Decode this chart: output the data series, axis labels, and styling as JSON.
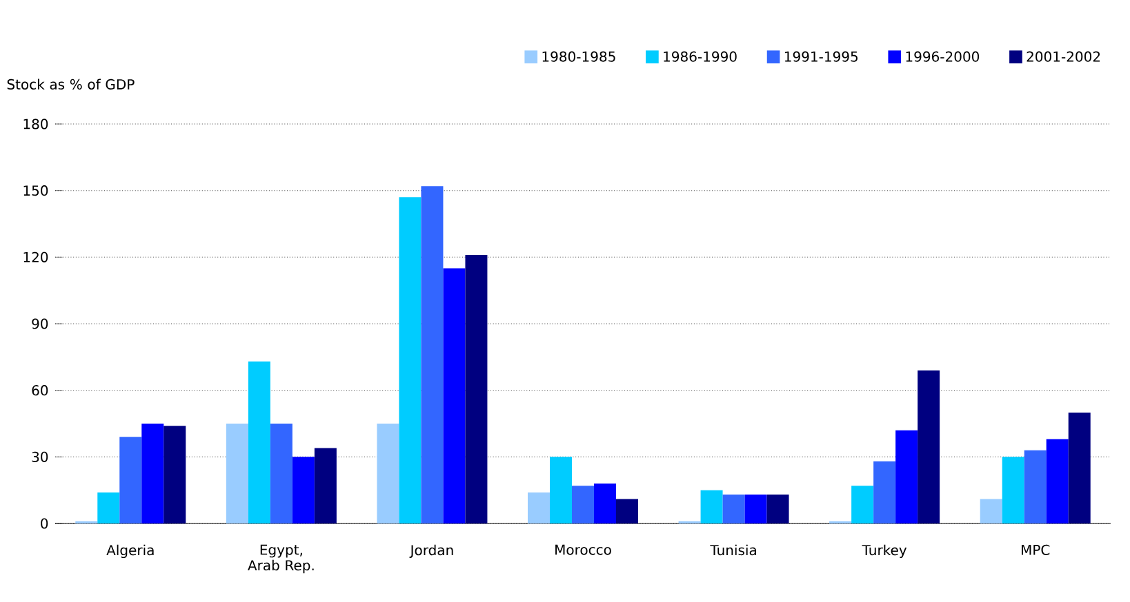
{
  "chart_data": {
    "type": "bar",
    "ylabel": "Stock as % of GDP",
    "categories": [
      "Algeria",
      "Egypt, Arab Rep.",
      "Jordan",
      "Morocco",
      "Tunisia",
      "Turkey",
      "MPC"
    ],
    "series": [
      {
        "name": "1980-1985",
        "color": "#99ccff",
        "values": [
          1,
          45,
          45,
          14,
          1,
          1,
          11
        ]
      },
      {
        "name": "1986-1990",
        "color": "#00ccff",
        "values": [
          14,
          73,
          147,
          30,
          15,
          17,
          30
        ]
      },
      {
        "name": "1991-1995",
        "color": "#3366ff",
        "values": [
          39,
          45,
          152,
          17,
          13,
          28,
          33
        ]
      },
      {
        "name": "1996-2000",
        "color": "#0000ff",
        "values": [
          45,
          30,
          115,
          18,
          13,
          42,
          38
        ]
      },
      {
        "name": "2001-2002",
        "color": "#000080",
        "values": [
          44,
          34,
          121,
          11,
          13,
          69,
          50
        ]
      }
    ],
    "ylim": [
      0,
      180
    ],
    "yticks": [
      0,
      30,
      60,
      90,
      120,
      150,
      180
    ],
    "grid": "y",
    "legend": "top right"
  }
}
